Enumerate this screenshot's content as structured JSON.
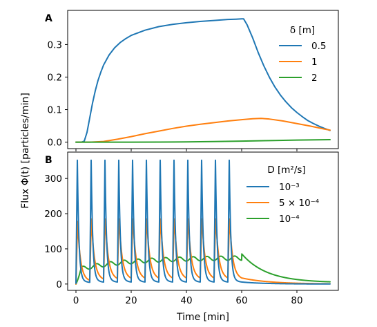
{
  "chart_data": [
    {
      "panel": "A",
      "type": "line",
      "xlim": [
        -3,
        95
      ],
      "ylim": [
        -0.02,
        0.405
      ],
      "xticks": [
        0,
        20,
        40,
        60,
        80
      ],
      "yticks": [
        0.0,
        0.1,
        0.2,
        0.3
      ],
      "ytick_labels": [
        "0.0",
        "0.1",
        "0.2",
        "0.3"
      ],
      "grid": false,
      "legend": {
        "title": "δ [m]",
        "placement": "upper right"
      },
      "series": [
        {
          "name": "0.5",
          "color": "#1f77b4",
          "x": [
            0,
            2,
            3,
            4,
            5,
            6,
            7,
            8,
            9,
            10,
            12,
            14,
            16,
            18,
            20,
            25,
            30,
            35,
            40,
            45,
            50,
            55,
            58,
            60,
            60.7,
            62,
            64,
            66,
            68,
            70,
            72,
            74,
            76,
            78,
            80,
            82,
            84,
            86,
            88,
            90,
            92
          ],
          "y": [
            0,
            0,
            0.003,
            0.03,
            0.075,
            0.12,
            0.158,
            0.19,
            0.215,
            0.237,
            0.268,
            0.29,
            0.306,
            0.318,
            0.328,
            0.344,
            0.355,
            0.362,
            0.367,
            0.371,
            0.374,
            0.377,
            0.378,
            0.379,
            0.379,
            0.36,
            0.32,
            0.275,
            0.235,
            0.2,
            0.17,
            0.145,
            0.124,
            0.106,
            0.091,
            0.078,
            0.066,
            0.057,
            0.049,
            0.042,
            0.036
          ]
        },
        {
          "name": "1",
          "color": "#ff7f0e",
          "x": [
            0,
            5,
            10,
            15,
            20,
            25,
            30,
            35,
            40,
            45,
            50,
            55,
            60,
            64,
            67,
            70,
            75,
            80,
            85,
            90,
            92
          ],
          "y": [
            0,
            0,
            0.002,
            0.009,
            0.017,
            0.026,
            0.034,
            0.042,
            0.049,
            0.055,
            0.06,
            0.065,
            0.069,
            0.072,
            0.073,
            0.071,
            0.065,
            0.057,
            0.049,
            0.04,
            0.037
          ]
        },
        {
          "name": "2",
          "color": "#2ca02c",
          "x": [
            0,
            20,
            30,
            40,
            50,
            60,
            70,
            80,
            92
          ],
          "y": [
            0,
            0,
            0.0002,
            0.0008,
            0.0018,
            0.0032,
            0.0047,
            0.0062,
            0.0075
          ]
        }
      ]
    },
    {
      "panel": "B",
      "type": "line",
      "xlim": [
        -3,
        95
      ],
      "ylim": [
        -18,
        375
      ],
      "xticks": [
        0,
        20,
        40,
        60,
        80
      ],
      "yticks": [
        0,
        100,
        200,
        300
      ],
      "grid": false,
      "legend": {
        "title": "D [m²/s]",
        "placement": "upper right"
      },
      "pulses": {
        "times": [
          0,
          5,
          10,
          15,
          20,
          25,
          30,
          35,
          40,
          45,
          50,
          55
        ],
        "last_pulse_end": 60
      },
      "series": [
        {
          "name": "10⁻³",
          "color": "#1f77b4",
          "peak": 350,
          "baseline": 15,
          "decay": "fast"
        },
        {
          "name": "5 × 10⁻⁴",
          "color": "#ff7f0e",
          "peak": 180,
          "baseline": 28,
          "decay": "medium"
        },
        {
          "name": "10⁻⁴",
          "color": "#2ca02c",
          "baseline_range": [
            35,
            75
          ],
          "final_peak": 82,
          "decay": "slow"
        }
      ]
    }
  ],
  "labels": {
    "panel_a": "A",
    "panel_b": "B",
    "xlabel": "Time [min]",
    "ylabel": "Flux Φ(t) [particles/min]",
    "legend_a_title": "δ [m]",
    "legend_b_title": "D [m²/s]"
  }
}
